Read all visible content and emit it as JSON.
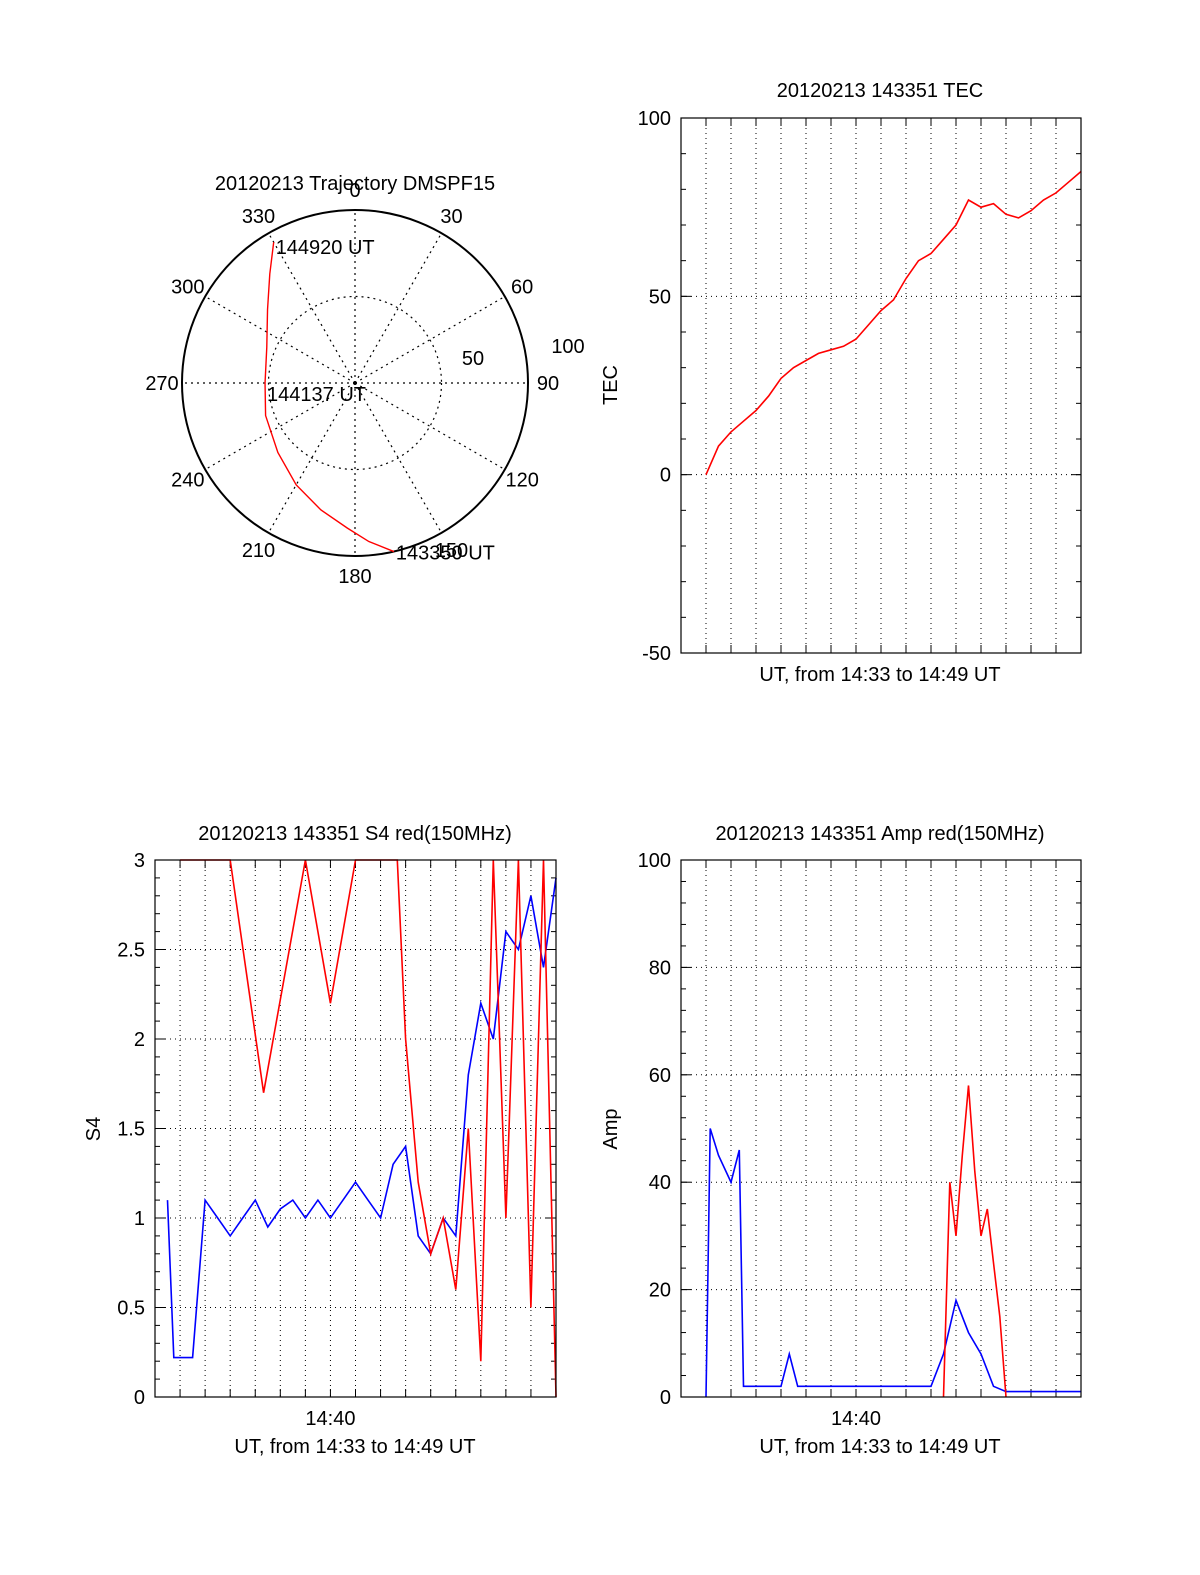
{
  "colors": {
    "red": "#ff0000",
    "blue": "#0000ff",
    "axis": "#000000",
    "grid": "#000000"
  },
  "chart_data": [
    {
      "id": "polar",
      "type": "polar",
      "title": "20120213 Trajectory DMSPF15",
      "angle_labels": [
        "0",
        "30",
        "60",
        "90",
        "120",
        "150",
        "180",
        "210",
        "240",
        "270",
        "300",
        "330"
      ],
      "radial_labels": [
        "50",
        "100"
      ],
      "rlim": [
        0,
        100
      ],
      "grid": true,
      "series": [
        {
          "color": "red",
          "points": [
            [
              167,
              100
            ],
            [
              175,
              92
            ],
            [
              183,
              84
            ],
            [
              195,
              76
            ],
            [
              210,
              68
            ],
            [
              228,
              60
            ],
            [
              250,
              55
            ],
            [
              270,
              52
            ],
            [
              292,
              55
            ],
            [
              310,
              66
            ],
            [
              322,
              80
            ],
            [
              330,
              94
            ]
          ]
        }
      ],
      "annotations": [
        {
          "text": "144920 UT",
          "label_of": "end"
        },
        {
          "text": "144137 UT",
          "label_of": "closest"
        },
        {
          "text": "143350 UT",
          "label_of": "start"
        }
      ]
    },
    {
      "id": "tec",
      "type": "line",
      "title": "20120213 143351 TEC",
      "xlabel": "UT, from 14:33 to 14:49 UT",
      "ylabel": "TEC",
      "xlim": [
        "14:33:00",
        "14:49:00"
      ],
      "ylim": [
        -50,
        100
      ],
      "yticks": [
        "100",
        "50",
        "0",
        "-50"
      ],
      "xticks": [],
      "grid": true,
      "series": [
        {
          "color": "red",
          "x": [
            "14:34:00",
            "14:34:30",
            "14:35:00",
            "14:35:30",
            "14:36:00",
            "14:36:30",
            "14:37:00",
            "14:37:30",
            "14:38:00",
            "14:38:30",
            "14:39:00",
            "14:39:30",
            "14:40:00",
            "14:40:30",
            "14:41:00",
            "14:41:30",
            "14:42:00",
            "14:42:30",
            "14:43:00",
            "14:43:30",
            "14:44:00",
            "14:44:30",
            "14:45:00",
            "14:45:30",
            "14:46:00",
            "14:46:30",
            "14:47:00",
            "14:47:30",
            "14:48:00",
            "14:48:30",
            "14:49:00"
          ],
          "y": [
            0,
            8,
            12,
            15,
            18,
            22,
            27,
            30,
            32,
            34,
            35,
            36,
            38,
            42,
            46,
            49,
            55,
            60,
            62,
            66,
            70,
            77,
            75,
            76,
            73,
            72,
            74,
            77,
            79,
            82,
            85
          ]
        }
      ]
    },
    {
      "id": "s4",
      "type": "line",
      "title": "20120213 143351 S4 red(150MHz)",
      "xlabel": "UT, from 14:33 to 14:49 UT",
      "ylabel": "S4",
      "xlim": [
        "14:33:00",
        "14:49:00"
      ],
      "ylim": [
        0,
        3
      ],
      "yticks": [
        "3",
        "2.5",
        "2",
        "1.5",
        "1",
        "0.5",
        "0"
      ],
      "xticks": [
        "14:40"
      ],
      "grid": true,
      "series": [
        {
          "color": "blue",
          "x": [
            "14:33:30",
            "14:33:45",
            "14:34:00",
            "14:34:30",
            "14:35:00",
            "14:35:30",
            "14:36:00",
            "14:36:30",
            "14:37:00",
            "14:37:30",
            "14:38:00",
            "14:38:30",
            "14:39:00",
            "14:39:30",
            "14:40:00",
            "14:40:30",
            "14:41:00",
            "14:41:30",
            "14:42:00",
            "14:42:30",
            "14:43:00",
            "14:43:30",
            "14:44:00",
            "14:44:30",
            "14:45:00",
            "14:45:30",
            "14:46:00",
            "14:46:30",
            "14:47:00",
            "14:47:30",
            "14:48:00",
            "14:48:30",
            "14:49:00"
          ],
          "y": [
            1.1,
            0.22,
            0.22,
            0.22,
            1.1,
            1.0,
            0.9,
            1.0,
            1.1,
            0.95,
            1.05,
            1.1,
            1.0,
            1.1,
            1.0,
            1.1,
            1.2,
            1.1,
            1.0,
            1.3,
            1.4,
            0.9,
            0.8,
            1.0,
            0.9,
            1.8,
            2.2,
            2.0,
            2.6,
            2.5,
            2.8,
            2.4,
            2.9
          ]
        },
        {
          "color": "red",
          "x": [
            "14:34:00",
            "14:36:00",
            "14:37:20",
            "14:39:00",
            "14:40:00",
            "14:41:00",
            "14:42:10",
            "14:42:40",
            "14:43:00",
            "14:43:30",
            "14:44:00",
            "14:44:30",
            "14:45:00",
            "14:45:30",
            "14:46:00",
            "14:46:30",
            "14:47:00",
            "14:47:30",
            "14:48:00",
            "14:48:30",
            "14:49:00"
          ],
          "y": [
            3.0,
            3.0,
            1.7,
            3.0,
            2.2,
            3.0,
            3.0,
            3.0,
            2.0,
            1.2,
            0.8,
            1.0,
            0.6,
            1.5,
            0.2,
            3.0,
            1.0,
            3.0,
            0.5,
            3.0,
            0.0
          ]
        }
      ]
    },
    {
      "id": "amp",
      "type": "line",
      "title": "20120213 143351 Amp red(150MHz)",
      "xlabel": "UT, from 14:33 to 14:49 UT",
      "ylabel": "Amp",
      "xlim": [
        "14:33:00",
        "14:49:00"
      ],
      "ylim": [
        0,
        100
      ],
      "yticks": [
        "100",
        "80",
        "60",
        "40",
        "20",
        "0"
      ],
      "xticks": [
        "14:40"
      ],
      "grid": true,
      "series": [
        {
          "color": "blue",
          "x": [
            "14:34:00",
            "14:34:10",
            "14:34:30",
            "14:35:00",
            "14:35:20",
            "14:35:30",
            "14:36:00",
            "14:37:00",
            "14:37:20",
            "14:37:40",
            "14:38:00",
            "14:39:00",
            "14:40:00",
            "14:41:00",
            "14:42:00",
            "14:43:00",
            "14:43:30",
            "14:44:00",
            "14:44:30",
            "14:45:00",
            "14:45:30",
            "14:46:00",
            "14:47:00",
            "14:48:00",
            "14:49:00"
          ],
          "y": [
            0,
            50,
            45,
            40,
            46,
            2,
            2,
            2,
            8,
            2,
            2,
            2,
            2,
            2,
            2,
            2,
            8,
            18,
            12,
            8,
            2,
            1,
            1,
            1,
            1
          ]
        },
        {
          "color": "red",
          "x": [
            "14:43:30",
            "14:43:45",
            "14:44:00",
            "14:44:15",
            "14:44:30",
            "14:44:45",
            "14:45:00",
            "14:45:15",
            "14:45:30",
            "14:45:45",
            "14:46:00"
          ],
          "y": [
            0,
            40,
            30,
            45,
            58,
            42,
            30,
            35,
            25,
            15,
            0
          ]
        }
      ]
    }
  ]
}
